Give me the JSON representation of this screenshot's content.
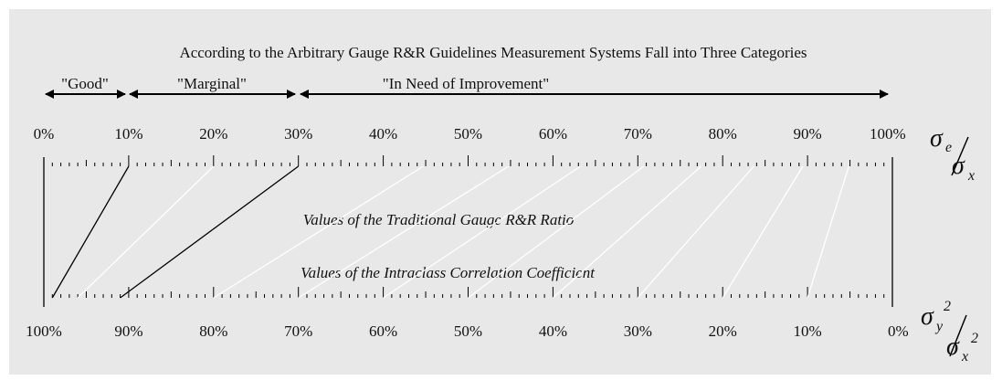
{
  "title": "According to the Arbitrary Gauge R&R Guidelines Measurement Systems Fall into Three Categories",
  "categories": [
    "\"Good\"",
    "\"Marginal\"",
    "\"In Need of Improvement\""
  ],
  "top_scale": {
    "labels": [
      "0%",
      "10%",
      "20%",
      "30%",
      "40%",
      "50%",
      "60%",
      "70%",
      "80%",
      "90%",
      "100%"
    ],
    "caption": "Values of the Traditional Gauge R&R Ratio",
    "symbol": {
      "numerator": "σ",
      "numerator_sub": "e",
      "denominator": "σ",
      "denominator_sub": "x"
    }
  },
  "bottom_scale": {
    "labels": [
      "100%",
      "90%",
      "80%",
      "70%",
      "60%",
      "50%",
      "40%",
      "30%",
      "20%",
      "10%",
      "0%"
    ],
    "caption": "Values of the Intraclass Correlation Coefficient",
    "symbol": {
      "numerator": "σ",
      "numerator_sub": "y",
      "numerator_sup": "2",
      "denominator": "σ",
      "denominator_sub": "x",
      "denominator_sup": "2"
    }
  }
}
